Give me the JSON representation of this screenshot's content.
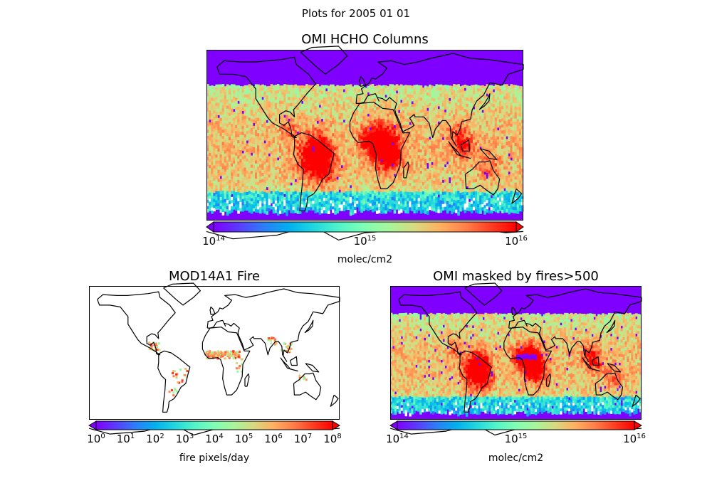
{
  "figure": {
    "suptitle": "Plots for 2005 01 01"
  },
  "colors": {
    "rainbow": [
      "#7f00ff",
      "#5a3cfe",
      "#2c7ef8",
      "#02b0ee",
      "#22d8de",
      "#52f5c8",
      "#80ffb4",
      "#a8f59a",
      "#d8d980",
      "#ffb061",
      "#ff7f4a",
      "#ff3e22",
      "#ff0000"
    ],
    "bg_low": "#7f00ff",
    "nodata": "#ffffff",
    "coast": "#000000"
  },
  "chart_data": [
    {
      "type": "heatmap",
      "title": "OMI HCHO Columns",
      "colorbar": {
        "label": "molec/cm2",
        "scale": "log",
        "range": [
          100000000000000.0,
          1e+16
        ],
        "ticks": [
          {
            "base": "10",
            "exp": "14"
          },
          {
            "base": "10",
            "exp": "15"
          },
          {
            "base": "10",
            "exp": "16"
          }
        ],
        "extend": "both"
      },
      "map": "global coastlines, lat -60 to 80",
      "field": "HCHO columns elevated (~1e16) over Amazon and central Africa, ~1e15–5e15 across tropics and mid-latitudes, minimum values poleward"
    },
    {
      "type": "heatmap",
      "title": "MOD14A1 Fire",
      "colorbar": {
        "label": "fire pixels/day",
        "scale": "log",
        "range": [
          1,
          100000000.0
        ],
        "ticks": [
          {
            "base": "10",
            "exp": "0"
          },
          {
            "base": "10",
            "exp": "1"
          },
          {
            "base": "10",
            "exp": "2"
          },
          {
            "base": "10",
            "exp": "3"
          },
          {
            "base": "10",
            "exp": "4"
          },
          {
            "base": "10",
            "exp": "5"
          },
          {
            "base": "10",
            "exp": "6"
          },
          {
            "base": "10",
            "exp": "7"
          },
          {
            "base": "10",
            "exp": "8"
          }
        ],
        "extend": "both"
      },
      "map": "global coastlines, lat -60 to 80",
      "field": "fire counts concentrated in Sahel/central Africa, with scattered points in Central America, South America and Southeast Asia"
    },
    {
      "type": "heatmap",
      "title": "OMI masked by fires>500",
      "colorbar": {
        "label": "molec/cm2",
        "scale": "log",
        "range": [
          100000000000000.0,
          1e+16
        ],
        "ticks": [
          {
            "base": "10",
            "exp": "14"
          },
          {
            "base": "10",
            "exp": "15"
          },
          {
            "base": "10",
            "exp": "16"
          }
        ],
        "extend": "both"
      },
      "map": "global coastlines, lat -60 to 80",
      "field": "same as OMI HCHO with grid cells having fires>500 masked (blank) over central Africa"
    }
  ]
}
